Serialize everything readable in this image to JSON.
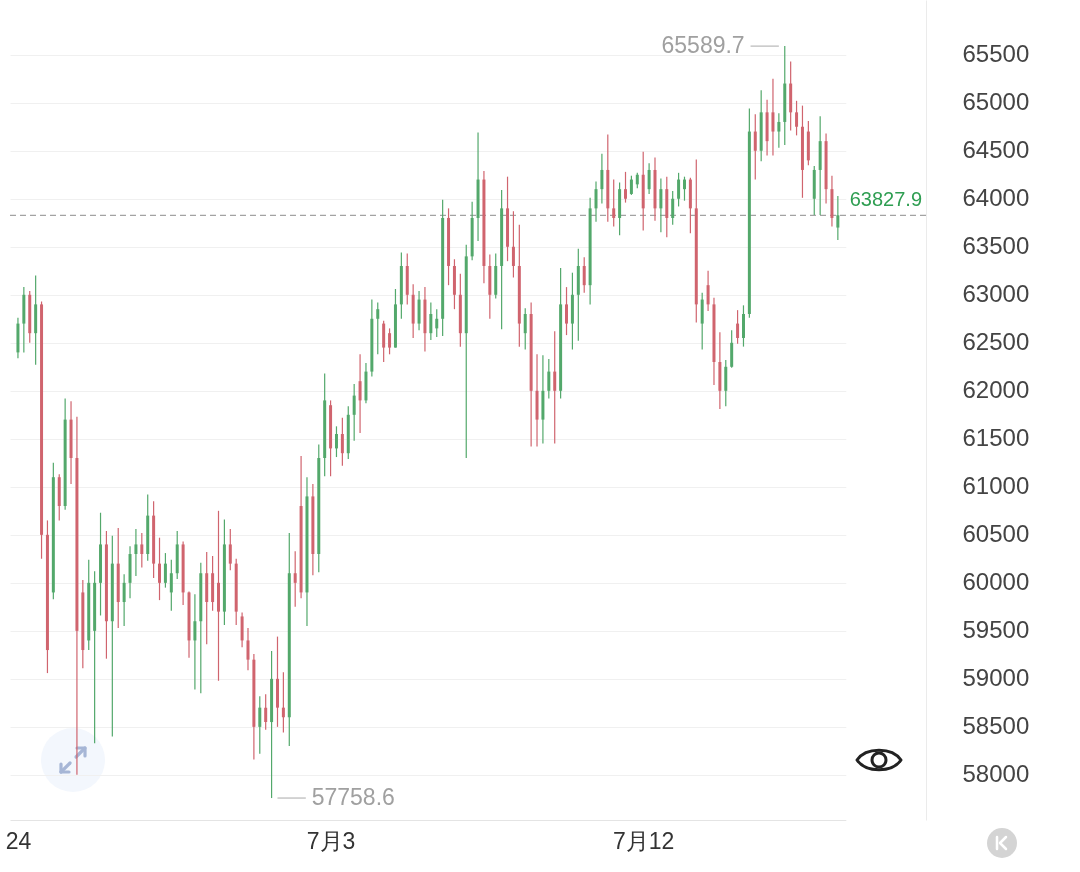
{
  "chart_data": {
    "type": "candlestick",
    "categories": [
      "24",
      null,
      null,
      null,
      null,
      null,
      null,
      null,
      null,
      null,
      null,
      null,
      null,
      null,
      null,
      null,
      null,
      null,
      null,
      null,
      null,
      null,
      null,
      null,
      null,
      null,
      null,
      null,
      null,
      null,
      null,
      null,
      null,
      null,
      null,
      null,
      null,
      null,
      null,
      null,
      null,
      null,
      null,
      null,
      null,
      null,
      null,
      null,
      null,
      null,
      null,
      null,
      null,
      "7月3",
      null,
      null,
      null,
      null,
      null,
      null,
      null,
      null,
      null,
      null,
      null,
      null,
      null,
      null,
      null,
      null,
      null,
      null,
      null,
      null,
      null,
      null,
      null,
      null,
      null,
      null,
      null,
      null,
      null,
      null,
      null,
      null,
      null,
      null,
      null,
      null,
      null,
      null,
      null,
      null,
      null,
      null,
      null,
      null,
      null,
      null,
      null,
      null,
      null,
      null,
      null,
      null,
      "7月12",
      null,
      null,
      null,
      null,
      null,
      null,
      null,
      null,
      null,
      null,
      null,
      null,
      null,
      null,
      null,
      null,
      null,
      null,
      null,
      null,
      null,
      null,
      null,
      null,
      null,
      null,
      null,
      null,
      null,
      null,
      null,
      null,
      null
    ],
    "ohlc": [
      [
        62400,
        62760,
        62340,
        62700
      ],
      [
        62700,
        63080,
        62400,
        63000
      ],
      [
        63000,
        63040,
        62500,
        62600
      ],
      [
        62600,
        63200,
        62270,
        62900
      ],
      [
        62900,
        62930,
        60250,
        60500
      ],
      [
        60500,
        60650,
        59060,
        59300
      ],
      [
        59900,
        61250,
        59830,
        61100
      ],
      [
        61100,
        61130,
        60650,
        60800
      ],
      [
        60800,
        61920,
        60760,
        61700
      ],
      [
        61700,
        61890,
        61030,
        61300
      ],
      [
        61300,
        61730,
        58000,
        59500
      ],
      [
        59900,
        60030,
        59110,
        59300
      ],
      [
        59400,
        60240,
        59300,
        60000
      ],
      [
        59500,
        60120,
        58330,
        60000
      ],
      [
        60000,
        60730,
        59660,
        60400
      ],
      [
        60400,
        60540,
        59210,
        59600
      ],
      [
        59600,
        60490,
        58400,
        60200
      ],
      [
        60200,
        60570,
        59530,
        59800
      ],
      [
        59800,
        60090,
        59550,
        60000
      ],
      [
        60000,
        60380,
        59840,
        60300
      ],
      [
        60300,
        60560,
        60070,
        60400
      ],
      [
        60400,
        60520,
        60160,
        60300
      ],
      [
        60300,
        60920,
        60230,
        60700
      ],
      [
        60700,
        60850,
        60050,
        60200
      ],
      [
        60200,
        60470,
        59820,
        60000
      ],
      [
        60000,
        60310,
        59950,
        60200
      ],
      [
        59900,
        60240,
        59710,
        60100
      ],
      [
        60100,
        60540,
        60040,
        60400
      ],
      [
        60400,
        60430,
        59770,
        59900
      ],
      [
        59900,
        59910,
        59220,
        59400
      ],
      [
        59400,
        59880,
        58890,
        59600
      ],
      [
        59600,
        60210,
        58850,
        60100
      ],
      [
        60100,
        60320,
        59360,
        59800
      ],
      [
        60100,
        60280,
        59710,
        59800
      ],
      [
        60000,
        60750,
        58980,
        59700
      ],
      [
        59700,
        60660,
        59560,
        60400
      ],
      [
        60400,
        60560,
        60130,
        60200
      ],
      [
        60200,
        60250,
        59560,
        59700
      ],
      [
        59650,
        59690,
        59330,
        59400
      ],
      [
        59400,
        59530,
        59090,
        59200
      ],
      [
        59200,
        59260,
        58160,
        58500
      ],
      [
        58500,
        58820,
        58220,
        58700
      ],
      [
        58700,
        58840,
        58470,
        58550
      ],
      [
        58550,
        59290,
        57758.6,
        59000
      ],
      [
        59000,
        59440,
        58500,
        58700
      ],
      [
        58700,
        59070,
        58440,
        58600
      ],
      [
        58600,
        60520,
        58300,
        60100
      ],
      [
        60100,
        60330,
        59750,
        60000
      ],
      [
        60800,
        61320,
        59840,
        59900
      ],
      [
        59900,
        61100,
        59550,
        60900
      ],
      [
        60900,
        61030,
        60080,
        60300
      ],
      [
        60300,
        61440,
        60110,
        61300
      ],
      [
        61300,
        62180,
        61110,
        61900
      ],
      [
        61850,
        61900,
        61110,
        61400
      ],
      [
        61400,
        61630,
        61310,
        61550
      ],
      [
        61550,
        61720,
        61220,
        61350
      ],
      [
        61350,
        61840,
        61290,
        61750
      ],
      [
        61750,
        62070,
        61480,
        61950
      ],
      [
        62100,
        62380,
        61560,
        61900
      ],
      [
        61900,
        62290,
        61870,
        62200
      ],
      [
        62200,
        62950,
        62150,
        62750
      ],
      [
        62750,
        62920,
        62380,
        62850
      ],
      [
        62700,
        62730,
        62300,
        62450
      ],
      [
        62600,
        62650,
        62380,
        62450
      ],
      [
        62450,
        63060,
        62450,
        62900
      ],
      [
        62900,
        63440,
        62750,
        63300
      ],
      [
        63300,
        63430,
        62900,
        63000
      ],
      [
        63000,
        63110,
        62550,
        62700
      ],
      [
        62700,
        63040,
        62630,
        62950
      ],
      [
        62950,
        63080,
        62410,
        62600
      ],
      [
        62600,
        62920,
        62530,
        62800
      ],
      [
        62650,
        62850,
        62560,
        62750
      ],
      [
        62750,
        63990,
        62570,
        63800
      ],
      [
        63800,
        63900,
        63100,
        63300
      ],
      [
        63300,
        63370,
        62850,
        63000
      ],
      [
        63000,
        63220,
        62460,
        62600
      ],
      [
        62600,
        63520,
        61300,
        63400
      ],
      [
        63400,
        63970,
        63360,
        63800
      ],
      [
        63800,
        64690,
        63560,
        64200
      ],
      [
        64200,
        64290,
        63120,
        63300
      ],
      [
        63300,
        63420,
        62750,
        63000
      ],
      [
        63000,
        63430,
        62960,
        63300
      ],
      [
        63300,
        64090,
        62640,
        63900
      ],
      [
        63900,
        64230,
        63350,
        63500
      ],
      [
        63500,
        63870,
        63180,
        63300
      ],
      [
        63300,
        63730,
        62460,
        62700
      ],
      [
        62600,
        62860,
        62430,
        62800
      ],
      [
        62800,
        62920,
        61420,
        62000
      ],
      [
        62000,
        62380,
        61420,
        61700
      ],
      [
        61700,
        62370,
        61450,
        62000
      ],
      [
        62000,
        62330,
        61920,
        62200
      ],
      [
        62200,
        62620,
        61450,
        62000
      ],
      [
        62000,
        63280,
        61920,
        62900
      ],
      [
        62900,
        63080,
        62580,
        62700
      ],
      [
        62700,
        63230,
        62430,
        63000
      ],
      [
        63000,
        63480,
        62520,
        63300
      ],
      [
        63300,
        63390,
        63020,
        63100
      ],
      [
        63100,
        64010,
        62900,
        63900
      ],
      [
        63900,
        64180,
        63760,
        64100
      ],
      [
        64100,
        64470,
        63950,
        64300
      ],
      [
        64300,
        64670,
        63760,
        63900
      ],
      [
        63900,
        64200,
        63710,
        63800
      ],
      [
        63800,
        64170,
        63620,
        64100
      ],
      [
        64100,
        64280,
        63960,
        64000
      ],
      [
        64050,
        64240,
        64040,
        64200
      ],
      [
        64150,
        64270,
        64110,
        64250
      ],
      [
        64250,
        64490,
        63670,
        63900
      ],
      [
        64100,
        64370,
        64050,
        64300
      ],
      [
        64300,
        64430,
        63770,
        63900
      ],
      [
        63900,
        64210,
        63650,
        64100
      ],
      [
        64100,
        64230,
        63600,
        63800
      ],
      [
        63800,
        64080,
        63730,
        64000
      ],
      [
        64000,
        64270,
        63920,
        64200
      ],
      [
        64100,
        64230,
        63980,
        64200
      ],
      [
        64200,
        64220,
        63640,
        63900
      ],
      [
        63900,
        64410,
        62710,
        62900
      ],
      [
        62700,
        63020,
        62430,
        62950
      ],
      [
        63100,
        63250,
        62830,
        62900
      ],
      [
        62900,
        62970,
        62060,
        62300
      ],
      [
        62300,
        62610,
        61810,
        62000
      ],
      [
        62000,
        62320,
        61840,
        62250
      ],
      [
        62250,
        62630,
        62240,
        62500
      ],
      [
        62700,
        62840,
        62490,
        62550
      ],
      [
        62550,
        62890,
        62460,
        62800
      ],
      [
        62800,
        64940,
        62760,
        64700
      ],
      [
        64700,
        64880,
        64200,
        64500
      ],
      [
        64500,
        65130,
        64390,
        64900
      ],
      [
        64900,
        65030,
        64450,
        64600
      ],
      [
        64900,
        65250,
        64450,
        64700
      ],
      [
        64700,
        64890,
        64530,
        64800
      ],
      [
        64800,
        65589.7,
        64560,
        65200
      ],
      [
        65200,
        65430,
        64710,
        64900
      ],
      [
        64900,
        65020,
        64660,
        64750
      ],
      [
        64750,
        64970,
        64010,
        64300
      ],
      [
        64700,
        64810,
        64350,
        64400
      ],
      [
        64000,
        64340,
        63830,
        64300
      ],
      [
        64300,
        64860,
        63830,
        64600
      ],
      [
        64600,
        64680,
        63950,
        64100
      ],
      [
        64100,
        64240,
        63710,
        63800
      ],
      [
        63700,
        64030,
        63570,
        63827.9
      ]
    ],
    "colors": [
      "#53a86b",
      "#53a86b",
      "#d0646e",
      "#53a86b",
      "#d0646e",
      "#d0646e",
      "#53a86b",
      "#d0646e",
      "#53a86b",
      "#d0646e",
      "#d0646e",
      "#d0646e",
      "#53a86b",
      "#53a86b",
      "#53a86b",
      "#d0646e",
      "#53a86b",
      "#d0646e",
      "#53a86b",
      "#53a86b",
      "#53a86b",
      "#d0646e",
      "#53a86b",
      "#d0646e",
      "#d0646e",
      "#53a86b",
      "#53a86b",
      "#53a86b",
      "#d0646e",
      "#d0646e",
      "#53a86b",
      "#53a86b",
      "#d0646e",
      "#d0646e",
      "#d0646e",
      "#53a86b",
      "#d0646e",
      "#d0646e",
      "#d0646e",
      "#d0646e",
      "#d0646e",
      "#53a86b",
      "#d0646e",
      "#53a86b",
      "#d0646e",
      "#d0646e",
      "#53a86b",
      "#d0646e",
      "#d0646e",
      "#53a86b",
      "#d0646e",
      "#53a86b",
      "#53a86b",
      "#d0646e",
      "#53a86b",
      "#d0646e",
      "#53a86b",
      "#53a86b",
      "#d0646e",
      "#53a86b",
      "#53a86b",
      "#53a86b",
      "#d0646e",
      "#d0646e",
      "#53a86b",
      "#53a86b",
      "#d0646e",
      "#d0646e",
      "#53a86b",
      "#d0646e",
      "#53a86b",
      "#53a86b",
      "#53a86b",
      "#d0646e",
      "#d0646e",
      "#d0646e",
      "#53a86b",
      "#53a86b",
      "#53a86b",
      "#d0646e",
      "#d0646e",
      "#53a86b",
      "#53a86b",
      "#d0646e",
      "#d0646e",
      "#d0646e",
      "#53a86b",
      "#d0646e",
      "#d0646e",
      "#53a86b",
      "#53a86b",
      "#d0646e",
      "#53a86b",
      "#d0646e",
      "#53a86b",
      "#53a86b",
      "#d0646e",
      "#53a86b",
      "#53a86b",
      "#53a86b",
      "#d0646e",
      "#d0646e",
      "#53a86b",
      "#d0646e",
      "#53a86b",
      "#53a86b",
      "#d0646e",
      "#53a86b",
      "#d0646e",
      "#53a86b",
      "#d0646e",
      "#53a86b",
      "#53a86b",
      "#53a86b",
      "#d0646e",
      "#d0646e",
      "#53a86b",
      "#d0646e",
      "#d0646e",
      "#d0646e",
      "#53a86b",
      "#53a86b",
      "#d0646e",
      "#53a86b",
      "#53a86b",
      "#d0646e",
      "#53a86b",
      "#d0646e",
      "#d0646e",
      "#53a86b",
      "#53a86b",
      "#d0646e",
      "#d0646e",
      "#d0646e",
      "#d0646e",
      "#53a86b",
      "#53a86b",
      "#d0646e",
      "#d0646e",
      "#53a86b"
    ],
    "ylim": [
      57530,
      66070
    ],
    "yticks": [
      58000,
      58500,
      59000,
      59500,
      60000,
      60500,
      61000,
      61500,
      62000,
      62500,
      63000,
      63500,
      64000,
      64500,
      65000,
      65500
    ],
    "grid": "y",
    "ref_lines": [
      {
        "axis": "y",
        "value": 63827.9,
        "label": "63827.9",
        "color": "#a3a3a3",
        "line_style": "dashed"
      }
    ],
    "annotations": [
      "65589.7",
      "57758.6"
    ]
  }
}
